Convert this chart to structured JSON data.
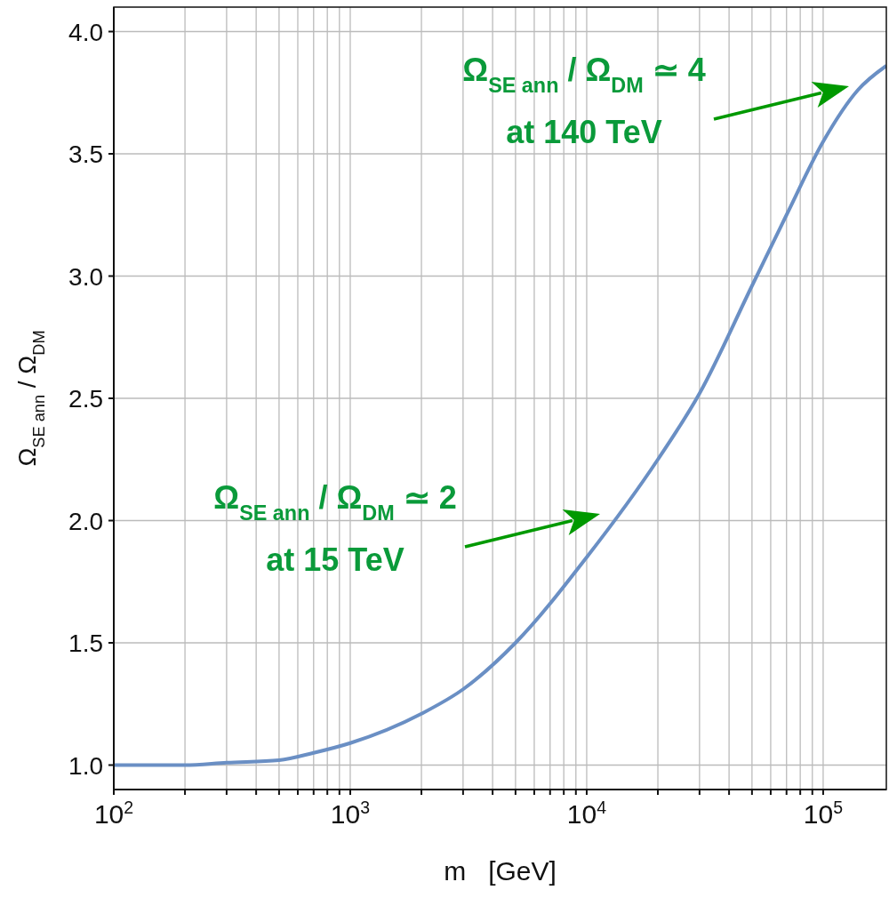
{
  "chart_data": {
    "type": "line",
    "xlabel": "m   [GeV]",
    "ylabel": "Ω$_{SE ann}$ / Ω$_{DM}$",
    "x": [
      100,
      200,
      300,
      500,
      700,
      1000,
      2000,
      3000,
      5000,
      10000,
      20000,
      30000,
      50000,
      70000,
      100000,
      140000,
      185000
    ],
    "series": [
      {
        "color": "#6a8fc4",
        "values": [
          1.0,
          1.0,
          1.01,
          1.02,
          1.05,
          1.09,
          1.21,
          1.31,
          1.5,
          1.85,
          2.25,
          2.52,
          2.96,
          3.25,
          3.55,
          3.76,
          3.86
        ]
      }
    ],
    "log": "x",
    "grid": true,
    "line_style": "solid",
    "marker": "none",
    "xlim": [
      100,
      185000
    ],
    "ylim": [
      0.9,
      4.1
    ],
    "xticks": [
      {
        "value": 100,
        "label": "10$^{2}$"
      },
      {
        "value": 200,
        "label": null
      },
      {
        "value": 300,
        "label": null
      },
      {
        "value": 400,
        "label": null
      },
      {
        "value": 500,
        "label": null
      },
      {
        "value": 600,
        "label": null
      },
      {
        "value": 700,
        "label": null
      },
      {
        "value": 800,
        "label": null
      },
      {
        "value": 900,
        "label": null
      },
      {
        "value": 1000,
        "label": "10$^{3}$"
      },
      {
        "value": 2000,
        "label": null
      },
      {
        "value": 3000,
        "label": null
      },
      {
        "value": 4000,
        "label": null
      },
      {
        "value": 5000,
        "label": null
      },
      {
        "value": 6000,
        "label": null
      },
      {
        "value": 7000,
        "label": null
      },
      {
        "value": 8000,
        "label": null
      },
      {
        "value": 9000,
        "label": null
      },
      {
        "value": 10000,
        "label": "10$^{4}$"
      },
      {
        "value": 20000,
        "label": null
      },
      {
        "value": 30000,
        "label": null
      },
      {
        "value": 40000,
        "label": null
      },
      {
        "value": 50000,
        "label": null
      },
      {
        "value": 60000,
        "label": null
      },
      {
        "value": 70000,
        "label": null
      },
      {
        "value": 80000,
        "label": null
      },
      {
        "value": 90000,
        "label": null
      },
      {
        "value": 100000,
        "label": "10$^{5}$"
      }
    ],
    "yticks": [
      {
        "value": 1,
        "label": "1.0"
      },
      {
        "value": 1.5,
        "label": "1.5"
      },
      {
        "value": 2,
        "label": "2.0"
      },
      {
        "value": 2.5,
        "label": "2.5"
      },
      {
        "value": 3,
        "label": "3.0"
      },
      {
        "value": 3.5,
        "label": "3.5"
      },
      {
        "value": 4,
        "label": "4.0"
      }
    ],
    "annotations": [
      "Ω$_{SE ann}$ / Ω$_{DM}$ ≃ 2\nat 15 TeV",
      "Ω$_{SE ann}$ / Ω$_{DM}$ ≃ 4\nat 140 TeV"
    ]
  }
}
